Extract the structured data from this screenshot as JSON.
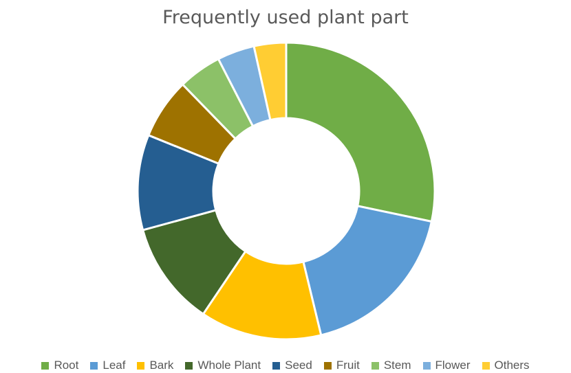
{
  "chart_data": {
    "type": "pie",
    "variant": "donut",
    "title": "Frequently used plant part",
    "categories": [
      "Root",
      "Leaf",
      "Bark",
      "Whole Plant",
      "Seed",
      "Fruit",
      "Stem",
      "Flower",
      "Others"
    ],
    "values": [
      30,
      19,
      14,
      12,
      11,
      7,
      5,
      4.3,
      3.7
    ],
    "colors": [
      "#70AD47",
      "#5B9BD5",
      "#FFC000",
      "#43682B",
      "#255E91",
      "#9E7200",
      "#8CC168",
      "#7CAFDD",
      "#FFCD33"
    ],
    "legend_position": "bottom",
    "grid": false
  }
}
